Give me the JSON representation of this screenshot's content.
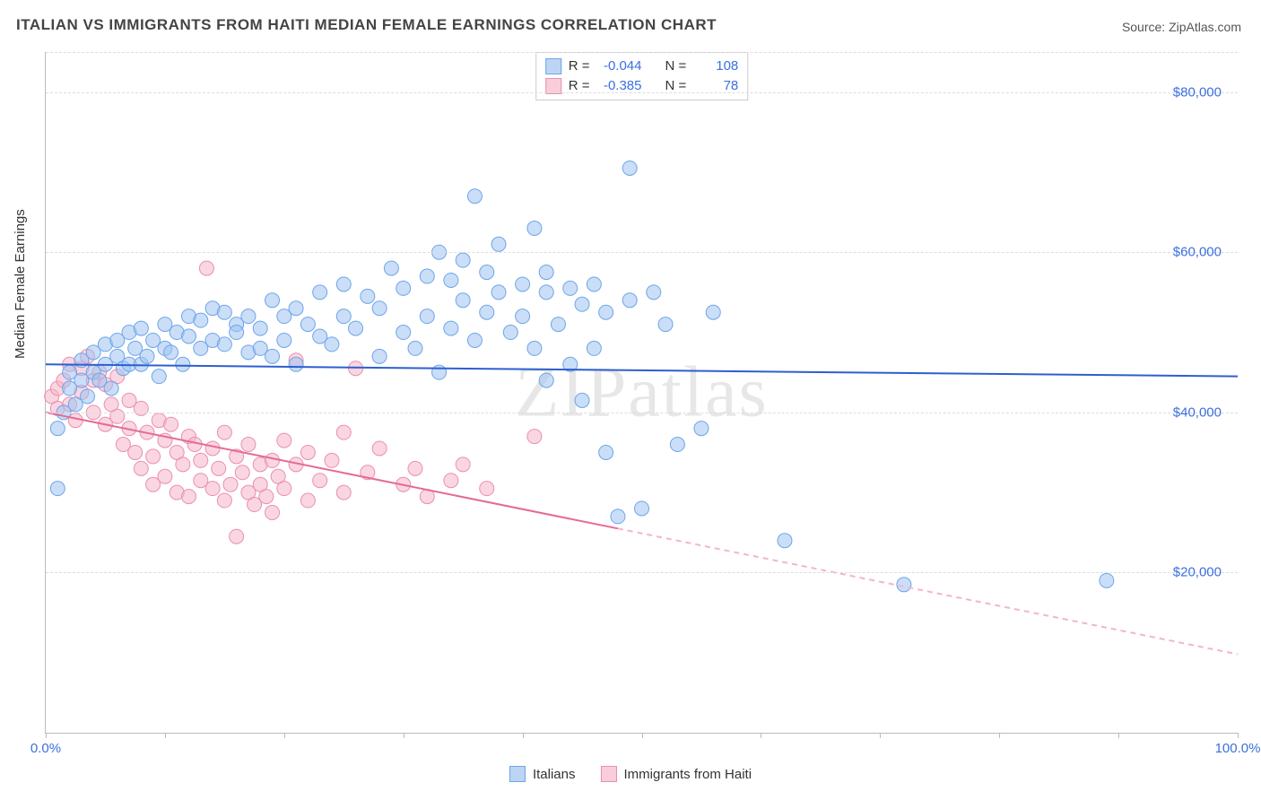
{
  "title": "ITALIAN VS IMMIGRANTS FROM HAITI MEDIAN FEMALE EARNINGS CORRELATION CHART",
  "source_label": "Source: ZipAtlas.com",
  "watermark_text": "ZIPatlas",
  "y_axis_label": "Median Female Earnings",
  "x_min_label": "0.0%",
  "x_max_label": "100.0%",
  "chart": {
    "type": "scatter_with_regression",
    "background_color": "#ffffff",
    "grid_color": "#dddddd",
    "axis_color": "#bbbbbb",
    "x_domain": [
      0,
      100
    ],
    "y_domain": [
      0,
      85000
    ],
    "y_ticks": [
      20000,
      40000,
      60000,
      80000
    ],
    "y_tick_labels": [
      "$20,000",
      "$40,000",
      "$60,000",
      "$80,000"
    ],
    "x_ticks": [
      0,
      10,
      20,
      30,
      40,
      50,
      60,
      70,
      80,
      90,
      100
    ],
    "marker_radius": 8,
    "marker_opacity": 0.55,
    "line_width": 2
  },
  "series_a": {
    "label": "Italians",
    "color_fill": "#9fc3f2",
    "color_stroke": "#6fa5e8",
    "swatch_fill": "#bcd5f5",
    "swatch_border": "#6fa5e8",
    "R_label": "R =",
    "R_value": "-0.044",
    "N_label": "N =",
    "N_value": "108",
    "regression": {
      "x1": 0,
      "y1": 46000,
      "x2": 100,
      "y2": 44500,
      "dashed": false,
      "color": "#2d5fd0"
    },
    "points": [
      [
        1,
        30500
      ],
      [
        1,
        38000
      ],
      [
        1.5,
        40000
      ],
      [
        2,
        43000
      ],
      [
        2,
        45000
      ],
      [
        2.5,
        41000
      ],
      [
        3,
        44000
      ],
      [
        3,
        46500
      ],
      [
        3.5,
        42000
      ],
      [
        4,
        47500
      ],
      [
        4,
        45000
      ],
      [
        4.5,
        44000
      ],
      [
        5,
        46000
      ],
      [
        5,
        48500
      ],
      [
        5.5,
        43000
      ],
      [
        6,
        47000
      ],
      [
        6,
        49000
      ],
      [
        6.5,
        45500
      ],
      [
        7,
        50000
      ],
      [
        7,
        46000
      ],
      [
        7.5,
        48000
      ],
      [
        8,
        46000
      ],
      [
        8,
        50500
      ],
      [
        8.5,
        47000
      ],
      [
        9,
        49000
      ],
      [
        9.5,
        44500
      ],
      [
        10,
        48000
      ],
      [
        10,
        51000
      ],
      [
        10.5,
        47500
      ],
      [
        11,
        50000
      ],
      [
        11.5,
        46000
      ],
      [
        12,
        49500
      ],
      [
        12,
        52000
      ],
      [
        13,
        48000
      ],
      [
        13,
        51500
      ],
      [
        14,
        49000
      ],
      [
        14,
        53000
      ],
      [
        15,
        52500
      ],
      [
        15,
        48500
      ],
      [
        16,
        51000
      ],
      [
        16,
        50000
      ],
      [
        17,
        47500
      ],
      [
        17,
        52000
      ],
      [
        18,
        48000
      ],
      [
        18,
        50500
      ],
      [
        19,
        47000
      ],
      [
        19,
        54000
      ],
      [
        20,
        52000
      ],
      [
        20,
        49000
      ],
      [
        21,
        46000
      ],
      [
        21,
        53000
      ],
      [
        22,
        51000
      ],
      [
        23,
        49500
      ],
      [
        23,
        55000
      ],
      [
        24,
        48500
      ],
      [
        25,
        52000
      ],
      [
        25,
        56000
      ],
      [
        26,
        50500
      ],
      [
        27,
        54500
      ],
      [
        28,
        47000
      ],
      [
        28,
        53000
      ],
      [
        29,
        58000
      ],
      [
        30,
        50000
      ],
      [
        30,
        55500
      ],
      [
        31,
        48000
      ],
      [
        32,
        57000
      ],
      [
        32,
        52000
      ],
      [
        33,
        60000
      ],
      [
        33,
        45000
      ],
      [
        34,
        56500
      ],
      [
        34,
        50500
      ],
      [
        35,
        54000
      ],
      [
        35,
        59000
      ],
      [
        36,
        49000
      ],
      [
        36,
        67000
      ],
      [
        37,
        57500
      ],
      [
        37,
        52500
      ],
      [
        38,
        55000
      ],
      [
        38,
        61000
      ],
      [
        39,
        50000
      ],
      [
        40,
        56000
      ],
      [
        40,
        52000
      ],
      [
        41,
        63000
      ],
      [
        41,
        48000
      ],
      [
        42,
        55000
      ],
      [
        42,
        57500
      ],
      [
        43,
        51000
      ],
      [
        44,
        55500
      ],
      [
        45,
        41500
      ],
      [
        45,
        53500
      ],
      [
        46,
        56000
      ],
      [
        47,
        35000
      ],
      [
        47,
        52500
      ],
      [
        48,
        27000
      ],
      [
        49,
        70500
      ],
      [
        49,
        54000
      ],
      [
        50,
        28000
      ],
      [
        51,
        55000
      ],
      [
        52,
        51000
      ],
      [
        53,
        36000
      ],
      [
        55,
        38000
      ],
      [
        56,
        52500
      ],
      [
        62,
        24000
      ],
      [
        72,
        18500
      ],
      [
        89,
        19000
      ],
      [
        42,
        44000
      ],
      [
        44,
        46000
      ],
      [
        46,
        48000
      ]
    ]
  },
  "series_b": {
    "label": "Immigrants from Haiti",
    "color_fill": "#f5b4c8",
    "color_stroke": "#ea8fb0",
    "swatch_fill": "#f9cdd9",
    "swatch_border": "#ea8fb0",
    "R_label": "R =",
    "R_value": "-0.385",
    "N_label": "N =",
    "N_value": "78",
    "regression": {
      "x1": 0,
      "y1": 40000,
      "x2": 48,
      "y2": 25500,
      "dashed": false,
      "color": "#e56a96"
    },
    "regression_extended": {
      "x1": 48,
      "y1": 25500,
      "x2": 100,
      "y2": 9800,
      "dashed": true,
      "color": "#f2b6c9"
    },
    "points": [
      [
        0.5,
        42000
      ],
      [
        1,
        43000
      ],
      [
        1,
        40500
      ],
      [
        1.5,
        44000
      ],
      [
        2,
        41000
      ],
      [
        2,
        46000
      ],
      [
        2.5,
        39000
      ],
      [
        3,
        45500
      ],
      [
        3,
        42500
      ],
      [
        3.5,
        47000
      ],
      [
        4,
        40000
      ],
      [
        4,
        44000
      ],
      [
        4.5,
        45000
      ],
      [
        5,
        38500
      ],
      [
        5,
        43500
      ],
      [
        5.5,
        41000
      ],
      [
        6,
        39500
      ],
      [
        6,
        44500
      ],
      [
        6.5,
        36000
      ],
      [
        7,
        41500
      ],
      [
        7,
        38000
      ],
      [
        7.5,
        35000
      ],
      [
        8,
        40500
      ],
      [
        8,
        33000
      ],
      [
        8.5,
        37500
      ],
      [
        9,
        34500
      ],
      [
        9,
        31000
      ],
      [
        9.5,
        39000
      ],
      [
        10,
        36500
      ],
      [
        10,
        32000
      ],
      [
        10.5,
        38500
      ],
      [
        11,
        30000
      ],
      [
        11,
        35000
      ],
      [
        11.5,
        33500
      ],
      [
        12,
        37000
      ],
      [
        12,
        29500
      ],
      [
        12.5,
        36000
      ],
      [
        13,
        34000
      ],
      [
        13,
        31500
      ],
      [
        13.5,
        58000
      ],
      [
        14,
        35500
      ],
      [
        14,
        30500
      ],
      [
        14.5,
        33000
      ],
      [
        15,
        37500
      ],
      [
        15,
        29000
      ],
      [
        15.5,
        31000
      ],
      [
        16,
        34500
      ],
      [
        16,
        24500
      ],
      [
        16.5,
        32500
      ],
      [
        17,
        30000
      ],
      [
        17,
        36000
      ],
      [
        17.5,
        28500
      ],
      [
        18,
        33500
      ],
      [
        18,
        31000
      ],
      [
        18.5,
        29500
      ],
      [
        19,
        34000
      ],
      [
        19,
        27500
      ],
      [
        19.5,
        32000
      ],
      [
        20,
        30500
      ],
      [
        20,
        36500
      ],
      [
        21,
        33500
      ],
      [
        21,
        46500
      ],
      [
        22,
        29000
      ],
      [
        22,
        35000
      ],
      [
        23,
        31500
      ],
      [
        24,
        34000
      ],
      [
        25,
        30000
      ],
      [
        25,
        37500
      ],
      [
        26,
        45500
      ],
      [
        27,
        32500
      ],
      [
        28,
        35500
      ],
      [
        30,
        31000
      ],
      [
        31,
        33000
      ],
      [
        32,
        29500
      ],
      [
        34,
        31500
      ],
      [
        35,
        33500
      ],
      [
        37,
        30500
      ],
      [
        41,
        37000
      ]
    ]
  },
  "legend_bottom": {
    "items": [
      {
        "label": "Italians",
        "key": "a"
      },
      {
        "label": "Immigrants from Haiti",
        "key": "b"
      }
    ]
  }
}
